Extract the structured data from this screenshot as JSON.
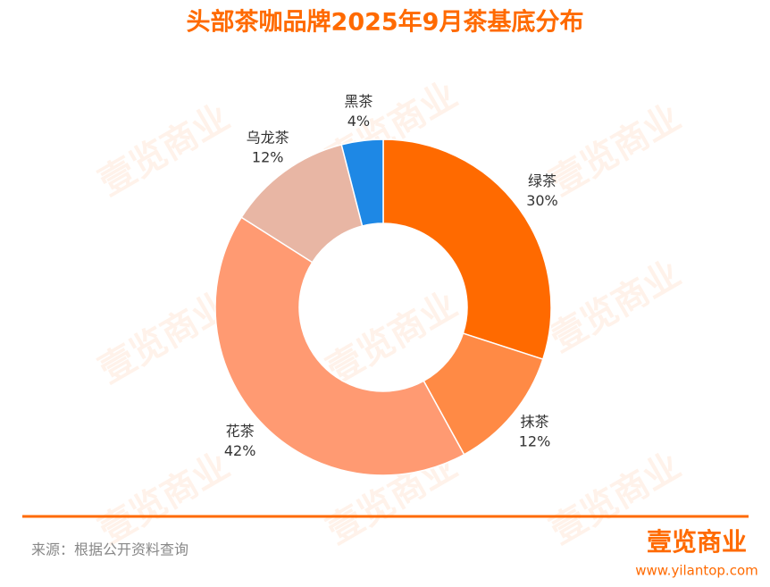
{
  "chart_data": {
    "type": "pie",
    "title": "头部茶咖品牌2025年9月茶基底分布",
    "categories": [
      "绿茶",
      "抹茶",
      "花茶",
      "乌龙茶",
      "黑茶"
    ],
    "values": [
      30,
      12,
      42,
      12,
      4
    ],
    "value_labels": [
      "30%",
      "12%",
      "42%",
      "12%",
      "4%"
    ],
    "colors": [
      "#ff6a00",
      "#ff8a45",
      "#ff9a72",
      "#e8b6a4",
      "#1e88e5"
    ],
    "source": "来源：根据公开资料查询",
    "logo": {
      "name": "壹览商业",
      "url": "www.yilantop.com"
    }
  }
}
